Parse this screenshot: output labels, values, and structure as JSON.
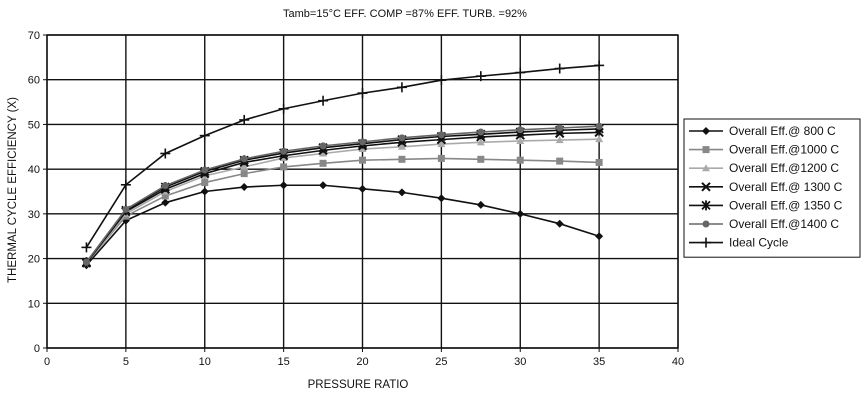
{
  "chart_data": {
    "type": "line",
    "title": "",
    "subtitle": "Tamb=15°C  EFF. COMP =87%  EFF. TURB. =92%",
    "xlabel": "PRESSURE RATIO",
    "ylabel": "THERMAL CYCLE EFFICIENCY (X)",
    "xlim": [
      0,
      40
    ],
    "ylim": [
      0,
      70
    ],
    "x_ticks": [
      0,
      5,
      10,
      15,
      20,
      25,
      30,
      35,
      40
    ],
    "y_ticks": [
      0,
      10,
      20,
      30,
      40,
      50,
      60,
      70
    ],
    "grid": true,
    "legend_position": "right",
    "series": [
      {
        "name": "Overall Eff.@ 800 C",
        "marker": "diamond",
        "color": "#111111",
        "x": [
          2.5,
          5,
          7.5,
          10,
          12.5,
          15,
          17.5,
          20,
          22.5,
          25,
          27.5,
          30,
          32.5,
          35
        ],
        "y": [
          18.5,
          28.5,
          32.5,
          35,
          36,
          36.4,
          36.4,
          35.6,
          34.8,
          33.5,
          32,
          30,
          27.8,
          25
        ]
      },
      {
        "name": "Overall Eff.@1000 C",
        "marker": "square",
        "color": "#888888",
        "x": [
          2.5,
          5,
          7.5,
          10,
          12.5,
          15,
          17.5,
          20,
          22.5,
          25,
          27.5,
          30,
          32.5,
          35
        ],
        "y": [
          19,
          29.5,
          34,
          37,
          39,
          40.5,
          41.3,
          42,
          42.2,
          42.4,
          42.2,
          42,
          41.8,
          41.5
        ]
      },
      {
        "name": "Overall Eff.@1200 C",
        "marker": "triangle",
        "color": "#aaaaaa",
        "x": [
          2.5,
          5,
          7.5,
          10,
          12.5,
          15,
          17.5,
          20,
          22.5,
          25,
          27.5,
          30,
          32.5,
          35
        ],
        "y": [
          19,
          30,
          35,
          38.5,
          40.5,
          42.5,
          43.5,
          44.5,
          45,
          45.6,
          46,
          46.3,
          46.5,
          46.7
        ]
      },
      {
        "name": "Overall Eff.@ 1300 C",
        "marker": "x",
        "color": "#111111",
        "x": [
          2.5,
          5,
          7.5,
          10,
          12.5,
          15,
          17.5,
          20,
          22.5,
          25,
          27.5,
          30,
          32.5,
          35
        ],
        "y": [
          19,
          30.5,
          35.5,
          39,
          41.5,
          43,
          44.2,
          45.2,
          46,
          46.6,
          47.2,
          47.6,
          48,
          48.2
        ]
      },
      {
        "name": "Overall Eff.@ 1350 C",
        "marker": "asterisk",
        "color": "#111111",
        "x": [
          2.5,
          5,
          7.5,
          10,
          12.5,
          15,
          17.5,
          20,
          22.5,
          25,
          27.5,
          30,
          32.5,
          35
        ],
        "y": [
          19.2,
          30.8,
          36,
          39.5,
          42,
          43.6,
          44.8,
          45.7,
          46.6,
          47.3,
          47.8,
          48.3,
          48.7,
          49
        ]
      },
      {
        "name": "Overall Eff.@1400 C",
        "marker": "circle",
        "color": "#666666",
        "x": [
          2.5,
          5,
          7.5,
          10,
          12.5,
          15,
          17.5,
          20,
          22.5,
          25,
          27.5,
          30,
          32.5,
          35
        ],
        "y": [
          19.2,
          31,
          36.3,
          39.8,
          42.3,
          44,
          45.2,
          46.1,
          47,
          47.7,
          48.3,
          48.8,
          49.2,
          49.6
        ]
      },
      {
        "name": "Ideal Cycle",
        "marker": "plus",
        "color": "#111111",
        "x": [
          2.5,
          5,
          7.5,
          10,
          12.5,
          15,
          17.5,
          20,
          22.5,
          25,
          27.5,
          30,
          32.5,
          35
        ],
        "y": [
          22.5,
          36.5,
          43.5,
          47.5,
          51,
          53.5,
          55.3,
          57,
          58.3,
          59.9,
          60.8,
          61.6,
          62.5,
          63.2
        ]
      }
    ]
  }
}
